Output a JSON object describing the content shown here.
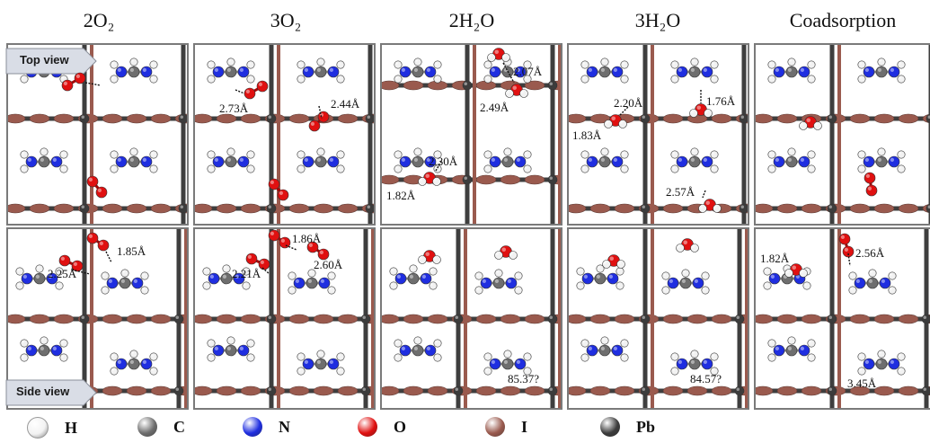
{
  "columns": [
    "2O₂",
    "3O₂",
    "2H₂O",
    "3H₂O",
    "Coadsorption"
  ],
  "view_labels": {
    "top": "Top view",
    "side": "Side view"
  },
  "measurements": {
    "top_2o2": [
      "2.73Å",
      "2.44Å"
    ],
    "top_2h2o": [
      "2.07Å",
      "2.49Å",
      "2.30Å",
      "1.82Å"
    ],
    "top_3h2o": [
      "2.20Å",
      "1.76Å",
      "1.83Å",
      "2.57Å"
    ],
    "side_2o2": [
      "1.85Å",
      "2.25Å"
    ],
    "side_3o2": [
      "1.86Å",
      "2.21Å",
      "2.60Å"
    ],
    "side_2h2o": [
      "85.37?"
    ],
    "side_3h2o": [
      "84.57?"
    ],
    "side_coads": [
      "1.82Å",
      "2.56Å",
      "3.45Å"
    ]
  },
  "legend": [
    {
      "label": "H",
      "color": "#f2f2f2"
    },
    {
      "label": "C",
      "color": "#6e6e6e"
    },
    {
      "label": "N",
      "color": "#1f2ee0"
    },
    {
      "label": "O",
      "color": "#e01010"
    },
    {
      "label": "I",
      "color": "#9a5a4e"
    },
    {
      "label": "Pb",
      "color": "#3c3c3c"
    }
  ]
}
